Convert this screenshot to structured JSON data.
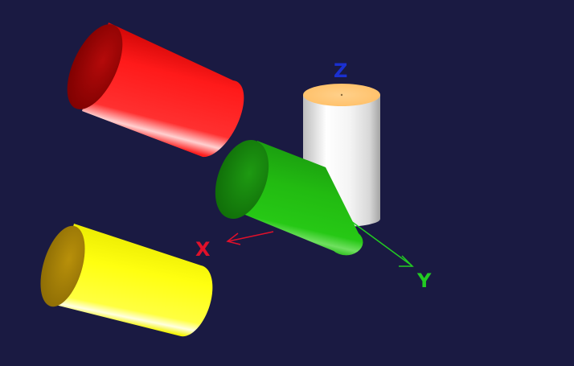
{
  "scene": {
    "background_color": "#1a1a42",
    "axes": {
      "x": {
        "label": "X",
        "color": "#e0102a"
      },
      "y": {
        "label": "Y",
        "color": "#22cc22"
      },
      "z": {
        "label": "Z",
        "color": "#1a30d0"
      }
    },
    "objects": [
      {
        "name": "red-cylinder",
        "color": "#ff1a1a"
      },
      {
        "name": "white-cylinder",
        "color": "#f2f2f2",
        "cap_color": "#ffc97a"
      },
      {
        "name": "green-cylinder",
        "color": "#22bb11"
      },
      {
        "name": "yellow-cylinder",
        "color": "#ffff10"
      }
    ]
  }
}
